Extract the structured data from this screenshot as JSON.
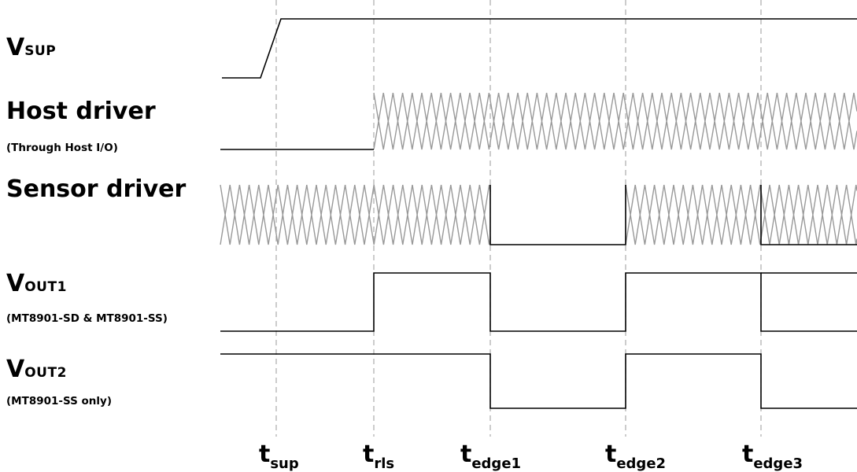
{
  "signals": {
    "vsup": {
      "main": "V",
      "sub": "SUP"
    },
    "host": {
      "title": "Host driver",
      "subtitle": "(Through Host I/O)"
    },
    "sensor": {
      "title": "Sensor driver"
    },
    "vout1": {
      "main": "V",
      "sub": "OUT1",
      "subtitle": "(MT8901-SD & MT8901-SS)"
    },
    "vout2": {
      "main": "V",
      "sub": "OUT2",
      "subtitle": "(MT8901-SS only)"
    }
  },
  "time_markers": [
    {
      "main": "t",
      "sub": "sup"
    },
    {
      "main": "t",
      "sub": "rls"
    },
    {
      "main": "t",
      "sub": "edge1"
    },
    {
      "main": "t",
      "sub": "edge2"
    },
    {
      "main": "t",
      "sub": "edge3"
    }
  ],
  "colors": {
    "signal": "#000000",
    "unknown_state": "#999999",
    "marker_line": "#aaaaaa"
  }
}
